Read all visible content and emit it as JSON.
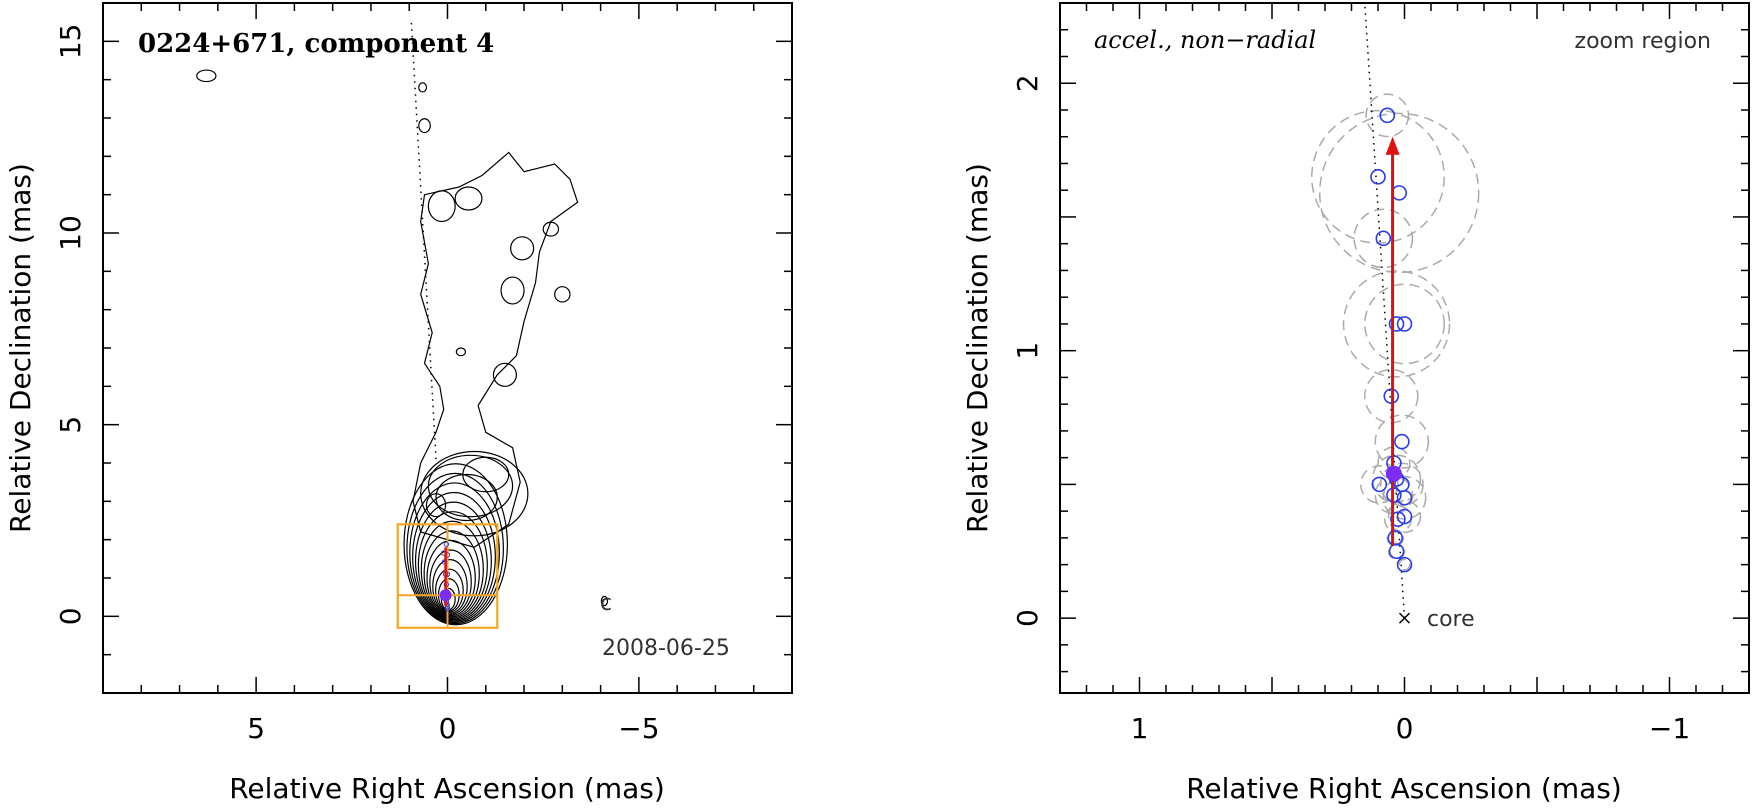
{
  "chart_data": [
    {
      "type": "contour",
      "title": "0224+671, component 4",
      "xlabel": "Relative Right Ascension (mas)",
      "ylabel": "Relative Declination (mas)",
      "xlim": [
        9,
        -9
      ],
      "ylim": [
        -2,
        16
      ],
      "xticks": [
        5,
        0,
        -5
      ],
      "yticks": [
        0,
        5,
        10,
        15
      ],
      "annotations": {
        "date": "2008-06-25",
        "beam": "c"
      },
      "colors": {
        "contour": "#000000",
        "zoom_box": "#f5a623",
        "component": "#7b2cf5",
        "vector": "#e01010",
        "track": "#2a3ee8"
      },
      "zoom_box": {
        "x": [
          1.3,
          -1.3
        ],
        "y": [
          -0.3,
          2.4
        ],
        "cross_x": 0.0,
        "cross_y": 0.55
      },
      "jet_axis": [
        [
          0.3,
          4.1
        ],
        [
          0.95,
          15.6
        ]
      ],
      "track": [
        [
          0.0,
          0.2
        ],
        [
          0.0,
          0.25
        ],
        [
          0.01,
          0.3
        ],
        [
          0.03,
          0.38
        ],
        [
          0.02,
          0.46
        ],
        [
          0.0,
          0.5
        ],
        [
          0.05,
          0.52
        ],
        [
          0.03,
          0.65
        ],
        [
          0.03,
          0.83
        ],
        [
          0.05,
          1.1
        ],
        [
          0.0,
          1.1
        ],
        [
          0.08,
          1.42
        ],
        [
          0.1,
          1.65
        ],
        [
          0.0,
          1.6
        ],
        [
          0.03,
          1.88
        ]
      ],
      "current_position": [
        0.05,
        0.55
      ],
      "vector": {
        "from": [
          0.05,
          0.27
        ],
        "to": [
          0.05,
          1.8
        ]
      }
    },
    {
      "type": "scatter",
      "title": "accel., non−radial",
      "subtitle": "zoom region",
      "xlabel": "Relative Right Ascension (mas)",
      "ylabel": "Relative Declination (mas)",
      "xlim": [
        1.3,
        -1.3
      ],
      "ylim": [
        -0.28,
        2.3
      ],
      "xticks": [
        1,
        0,
        -1
      ],
      "yticks": [
        0,
        1,
        2
      ],
      "core_label": "core",
      "series": [
        {
          "x": [
            0.0,
            0.03,
            0.035,
            0.0,
            0.04,
            0.01,
            0.03,
            0.01,
            0.05,
            0.0,
            0.03,
            0.08,
            0.1,
            0.02,
            0.065,
            0.04,
            0.095,
            0.0,
            0.025
          ],
          "y": [
            0.2,
            0.25,
            0.3,
            0.38,
            0.46,
            0.5,
            0.52,
            0.66,
            0.83,
            1.1,
            1.1,
            1.42,
            1.65,
            1.59,
            1.88,
            0.58,
            0.5,
            0.45,
            0.37
          ],
          "uncertainty": [
            0.02,
            0.03,
            0.03,
            0.06,
            0.07,
            0.08,
            0.09,
            0.1,
            0.1,
            0.15,
            0.2,
            0.11,
            0.25,
            0.3,
            0.08,
            0.06,
            0.07,
            0.08,
            0.05
          ]
        }
      ],
      "current_position": [
        0.04,
        0.54
      ],
      "vector": {
        "from": [
          0.045,
          0.27
        ],
        "to": [
          0.045,
          1.8
        ]
      },
      "jet_axis": [
        [
          0.0,
          0.0
        ],
        [
          0.15,
          2.3
        ]
      ],
      "colors": {
        "points": "#2a3ee8",
        "current": "#7b2cf5",
        "vector": "#e01010",
        "ellipses": "#aaaaaa"
      }
    }
  ]
}
